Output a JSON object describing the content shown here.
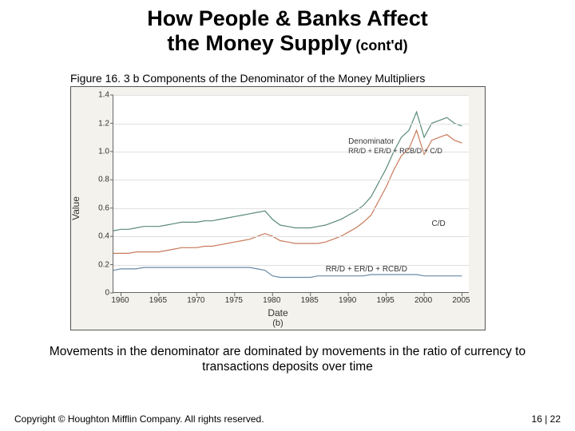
{
  "title": {
    "line1": "How People & Banks Affect",
    "line2": "the Money Supply",
    "suffix": " (cont'd)"
  },
  "figure_caption": "Figure 16. 3 b Components of the Denominator of the Money Multipliers",
  "chart": {
    "type": "line",
    "background_color": "#f3f2ec",
    "plot_background_color": "#ffffff",
    "grid_color": "#e0e0e0",
    "axis_color": "#666666",
    "x_label": "Date",
    "y_label": "Value",
    "sub_label": "(b)",
    "xlim": [
      1959,
      2006
    ],
    "ylim": [
      0,
      1.4
    ],
    "yticks": [
      0,
      0.2,
      0.4,
      0.6,
      0.8,
      1.0,
      1.2,
      1.4
    ],
    "xticks": [
      1960,
      1965,
      1970,
      1975,
      1980,
      1985,
      1990,
      1995,
      2000,
      2005
    ],
    "label_fontsize": 12,
    "tick_fontsize": 10,
    "series": [
      {
        "name": "Denominator",
        "color": "#5a8a7a",
        "line_width": 1.2,
        "label_text": "Denominator",
        "label_formula": "RR/D + ER/D + RCB/D + C/D",
        "label_x": 1990,
        "label_y": 1.02,
        "data": [
          [
            1959,
            0.44
          ],
          [
            1960,
            0.45
          ],
          [
            1961,
            0.45
          ],
          [
            1962,
            0.46
          ],
          [
            1963,
            0.47
          ],
          [
            1964,
            0.47
          ],
          [
            1965,
            0.47
          ],
          [
            1966,
            0.48
          ],
          [
            1967,
            0.49
          ],
          [
            1968,
            0.5
          ],
          [
            1969,
            0.5
          ],
          [
            1970,
            0.5
          ],
          [
            1971,
            0.51
          ],
          [
            1972,
            0.51
          ],
          [
            1973,
            0.52
          ],
          [
            1974,
            0.53
          ],
          [
            1975,
            0.54
          ],
          [
            1976,
            0.55
          ],
          [
            1977,
            0.56
          ],
          [
            1978,
            0.57
          ],
          [
            1979,
            0.58
          ],
          [
            1980,
            0.52
          ],
          [
            1981,
            0.48
          ],
          [
            1982,
            0.47
          ],
          [
            1983,
            0.46
          ],
          [
            1984,
            0.46
          ],
          [
            1985,
            0.46
          ],
          [
            1986,
            0.47
          ],
          [
            1987,
            0.48
          ],
          [
            1988,
            0.5
          ],
          [
            1989,
            0.52
          ],
          [
            1990,
            0.55
          ],
          [
            1991,
            0.58
          ],
          [
            1992,
            0.62
          ],
          [
            1993,
            0.68
          ],
          [
            1994,
            0.78
          ],
          [
            1995,
            0.88
          ],
          [
            1996,
            1.0
          ],
          [
            1997,
            1.1
          ],
          [
            1998,
            1.15
          ],
          [
            1999,
            1.28
          ],
          [
            2000,
            1.1
          ],
          [
            2001,
            1.2
          ],
          [
            2002,
            1.22
          ],
          [
            2003,
            1.24
          ],
          [
            2004,
            1.2
          ],
          [
            2005,
            1.18
          ]
        ]
      },
      {
        "name": "CD",
        "color": "#c87a5a",
        "line_width": 1.2,
        "label_text": "C/D",
        "label_x": 2001,
        "label_y": 0.52,
        "data": [
          [
            1959,
            0.28
          ],
          [
            1960,
            0.28
          ],
          [
            1961,
            0.28
          ],
          [
            1962,
            0.29
          ],
          [
            1963,
            0.29
          ],
          [
            1964,
            0.29
          ],
          [
            1965,
            0.29
          ],
          [
            1966,
            0.3
          ],
          [
            1967,
            0.31
          ],
          [
            1968,
            0.32
          ],
          [
            1969,
            0.32
          ],
          [
            1970,
            0.32
          ],
          [
            1971,
            0.33
          ],
          [
            1972,
            0.33
          ],
          [
            1973,
            0.34
          ],
          [
            1974,
            0.35
          ],
          [
            1975,
            0.36
          ],
          [
            1976,
            0.37
          ],
          [
            1977,
            0.38
          ],
          [
            1978,
            0.4
          ],
          [
            1979,
            0.42
          ],
          [
            1980,
            0.4
          ],
          [
            1981,
            0.37
          ],
          [
            1982,
            0.36
          ],
          [
            1983,
            0.35
          ],
          [
            1984,
            0.35
          ],
          [
            1985,
            0.35
          ],
          [
            1986,
            0.35
          ],
          [
            1987,
            0.36
          ],
          [
            1988,
            0.38
          ],
          [
            1989,
            0.4
          ],
          [
            1990,
            0.43
          ],
          [
            1991,
            0.46
          ],
          [
            1992,
            0.5
          ],
          [
            1993,
            0.55
          ],
          [
            1994,
            0.65
          ],
          [
            1995,
            0.75
          ],
          [
            1996,
            0.87
          ],
          [
            1997,
            0.97
          ],
          [
            1998,
            1.02
          ],
          [
            1999,
            1.15
          ],
          [
            2000,
            0.98
          ],
          [
            2001,
            1.08
          ],
          [
            2002,
            1.1
          ],
          [
            2003,
            1.12
          ],
          [
            2004,
            1.08
          ],
          [
            2005,
            1.06
          ]
        ]
      },
      {
        "name": "RRD",
        "color": "#6a8aa8",
        "line_width": 1.2,
        "label_text": "RR/D + ER/D + RCB/D",
        "label_x": 1987,
        "label_y": 0.2,
        "data": [
          [
            1959,
            0.16
          ],
          [
            1960,
            0.17
          ],
          [
            1961,
            0.17
          ],
          [
            1962,
            0.17
          ],
          [
            1963,
            0.18
          ],
          [
            1964,
            0.18
          ],
          [
            1965,
            0.18
          ],
          [
            1966,
            0.18
          ],
          [
            1967,
            0.18
          ],
          [
            1968,
            0.18
          ],
          [
            1969,
            0.18
          ],
          [
            1970,
            0.18
          ],
          [
            1971,
            0.18
          ],
          [
            1972,
            0.18
          ],
          [
            1973,
            0.18
          ],
          [
            1974,
            0.18
          ],
          [
            1975,
            0.18
          ],
          [
            1976,
            0.18
          ],
          [
            1977,
            0.18
          ],
          [
            1978,
            0.17
          ],
          [
            1979,
            0.16
          ],
          [
            1980,
            0.12
          ],
          [
            1981,
            0.11
          ],
          [
            1982,
            0.11
          ],
          [
            1983,
            0.11
          ],
          [
            1984,
            0.11
          ],
          [
            1985,
            0.11
          ],
          [
            1986,
            0.12
          ],
          [
            1987,
            0.12
          ],
          [
            1988,
            0.12
          ],
          [
            1989,
            0.12
          ],
          [
            1990,
            0.12
          ],
          [
            1991,
            0.12
          ],
          [
            1992,
            0.12
          ],
          [
            1993,
            0.13
          ],
          [
            1994,
            0.13
          ],
          [
            1995,
            0.13
          ],
          [
            1996,
            0.13
          ],
          [
            1997,
            0.13
          ],
          [
            1998,
            0.13
          ],
          [
            1999,
            0.13
          ],
          [
            2000,
            0.12
          ],
          [
            2001,
            0.12
          ],
          [
            2002,
            0.12
          ],
          [
            2003,
            0.12
          ],
          [
            2004,
            0.12
          ],
          [
            2005,
            0.12
          ]
        ]
      }
    ]
  },
  "body_text": "Movements in the denominator are dominated by movements in the ratio of currency to transactions deposits over time",
  "footer": {
    "copyright": "Copyright © Houghton Mifflin Company.   All rights reserved.",
    "page": "16 | 22"
  }
}
